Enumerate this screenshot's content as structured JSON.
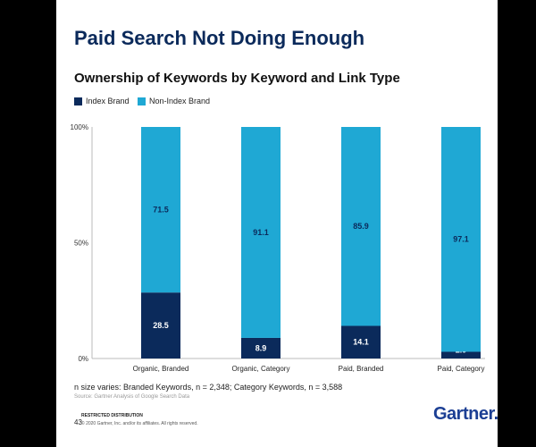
{
  "slide": {
    "headline": "Paid Search Not Doing Enough",
    "footnote": "n size varies: Branded Keywords, n = 2,348; Category Keywords, n = 3,588",
    "source": "Source: Gartner Analysis of Google Search Data",
    "restricted": "RESTRICTED DISTRIBUTION",
    "slide_number": "43",
    "copyright": "© 2020 Gartner, Inc. and/or its affiliates. All rights reserved.",
    "logo": "Gartner."
  },
  "chart_data": {
    "type": "bar",
    "stacked": true,
    "title": "Ownership of Keywords by Keyword and Link Type",
    "categories": [
      "Organic, Branded",
      "Organic, Category",
      "Paid, Branded",
      "Paid, Category"
    ],
    "series": [
      {
        "name": "Index Brand",
        "color": "#0b2a5b",
        "values": [
          28.5,
          8.9,
          14.1,
          2.9
        ]
      },
      {
        "name": "Non-Index Brand",
        "color": "#1fa8d4",
        "values": [
          71.5,
          91.1,
          85.9,
          97.1
        ]
      }
    ],
    "yticks": [
      "0%",
      "50%",
      "100%"
    ],
    "ylim": [
      0,
      100
    ],
    "legend_position": "top-left",
    "grid": false
  }
}
